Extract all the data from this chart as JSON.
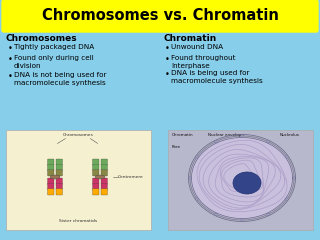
{
  "title": "Chromosomes vs. Chromatin",
  "title_bg": "#FFFF00",
  "title_color": "#000000",
  "background_color": "#87CEEB",
  "left_header": "Chromosomes",
  "left_bullets": [
    "Tightly packaged DNA",
    "Found only during cell\ndivision",
    "DNA is not being used for\nmacromolecule synthesis"
  ],
  "right_header": "Chromatin",
  "right_bullets": [
    "Unwound DNA",
    "Found throughout\nInterphase",
    "DNA is being used for\nmacromolecule synthesis"
  ],
  "left_image_bg": "#F5F0D0",
  "right_image_bg": "#C0C0D0"
}
